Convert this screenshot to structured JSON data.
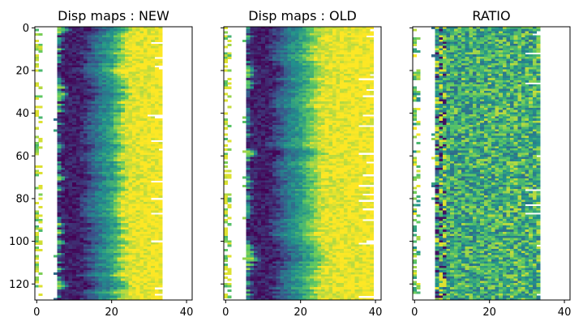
{
  "figure": {
    "background": "#ffffff",
    "colormap": "viridis",
    "colormap_stops": [
      "#440154",
      "#3b528b",
      "#21918c",
      "#5ec962",
      "#fde725"
    ],
    "missing_color": "#ffffff"
  },
  "chart_data": [
    {
      "type": "heatmap",
      "title": "Disp maps : NEW",
      "xlabel": "",
      "ylabel": "",
      "xlim": [
        0,
        42
      ],
      "ylim": [
        128,
        0
      ],
      "xticks": [
        0,
        20,
        40
      ],
      "yticks": [
        0,
        20,
        40,
        60,
        80,
        100,
        120
      ],
      "show_ytick_labels": true,
      "grid": false,
      "rows": 128,
      "cols": 42,
      "data_cols": [
        0,
        34
      ],
      "pattern": "banded",
      "band_profile": [
        {
          "x": 0,
          "v": 0.85
        },
        {
          "x": 5,
          "v": 0.8
        },
        {
          "x": 7,
          "v": 0.1
        },
        {
          "x": 12,
          "v": 0.08
        },
        {
          "x": 16,
          "v": 0.35
        },
        {
          "x": 21,
          "v": 0.6
        },
        {
          "x": 24,
          "v": 0.95
        },
        {
          "x": 34,
          "v": 1.0
        }
      ],
      "missing_column_band": [
        1,
        6
      ]
    },
    {
      "type": "heatmap",
      "title": "Disp maps : OLD",
      "xlabel": "",
      "ylabel": "",
      "xlim": [
        0,
        42
      ],
      "ylim": [
        128,
        0
      ],
      "xticks": [
        0,
        20,
        40
      ],
      "yticks": [
        0,
        20,
        40,
        60,
        80,
        100,
        120
      ],
      "show_ytick_labels": false,
      "grid": false,
      "rows": 128,
      "cols": 42,
      "data_cols": [
        0,
        40
      ],
      "pattern": "banded",
      "band_profile": [
        {
          "x": 0,
          "v": 0.85
        },
        {
          "x": 5,
          "v": 0.8
        },
        {
          "x": 7,
          "v": 0.1
        },
        {
          "x": 12,
          "v": 0.08
        },
        {
          "x": 16,
          "v": 0.35
        },
        {
          "x": 21,
          "v": 0.6
        },
        {
          "x": 26,
          "v": 0.95
        },
        {
          "x": 40,
          "v": 1.0
        }
      ],
      "missing_column_band": [
        1,
        6
      ]
    },
    {
      "type": "heatmap",
      "title": "RATIO",
      "xlabel": "",
      "ylabel": "",
      "xlim": [
        0,
        42
      ],
      "ylim": [
        128,
        0
      ],
      "xticks": [
        0,
        20,
        40
      ],
      "yticks": [
        0,
        20,
        40,
        60,
        80,
        100,
        120
      ],
      "show_ytick_labels": false,
      "grid": false,
      "rows": 128,
      "cols": 42,
      "data_cols": [
        0,
        34
      ],
      "pattern": "noisy",
      "band_profile": [
        {
          "x": 0,
          "v": 0.75
        },
        {
          "x": 6,
          "v": 0.55
        },
        {
          "x": 8,
          "v": 0.6
        },
        {
          "x": 34,
          "v": 0.65
        }
      ],
      "missing_column_band": [
        1,
        6
      ]
    }
  ]
}
